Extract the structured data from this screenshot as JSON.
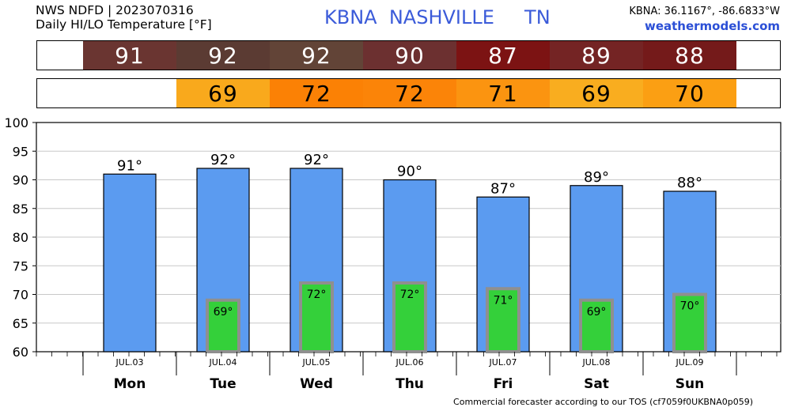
{
  "header": {
    "line1": "NWS NDFD | 2023070316",
    "line2": "Daily HI/LO Temperature [°F]",
    "station_title": "KBNA  NASHVILLE     TN",
    "coords": "KBNA: 36.1167°, -86.6833°W",
    "site": "weathermodels.com"
  },
  "strips": {
    "hi": [
      {
        "value": "91",
        "color": "#6a3531"
      },
      {
        "value": "92",
        "color": "#5b3b33"
      },
      {
        "value": "92",
        "color": "#624437"
      },
      {
        "value": "90",
        "color": "#6c3030"
      },
      {
        "value": "87",
        "color": "#7c1313"
      },
      {
        "value": "89",
        "color": "#742424"
      },
      {
        "value": "88",
        "color": "#741a1a"
      }
    ],
    "lo": [
      {
        "value": "69",
        "color": "#f9a91c"
      },
      {
        "value": "72",
        "color": "#fb8105"
      },
      {
        "value": "72",
        "color": "#fb8408"
      },
      {
        "value": "71",
        "color": "#fb9410"
      },
      {
        "value": "69",
        "color": "#f9ad1f"
      },
      {
        "value": "70",
        "color": "#fb9f13"
      }
    ]
  },
  "chart_data": {
    "type": "bar",
    "categories": [
      "Mon",
      "Tue",
      "Wed",
      "Thu",
      "Fri",
      "Sat",
      "Sun"
    ],
    "dates": [
      "JUL.03",
      "JUL.04",
      "JUL.05",
      "JUL.06",
      "JUL.07",
      "JUL.08",
      "JUL.09"
    ],
    "series": [
      {
        "values": [
          91,
          92,
          92,
          90,
          87,
          89,
          88
        ],
        "labels": [
          "91°",
          "92°",
          "92°",
          "90°",
          "87°",
          "89°",
          "88°"
        ],
        "color": "#5b9bf0"
      },
      {
        "values": [
          null,
          69,
          72,
          72,
          71,
          69,
          70
        ],
        "labels": [
          "",
          "69°",
          "72°",
          "72°",
          "71°",
          "69°",
          "70°"
        ],
        "color": "#34d03a"
      }
    ],
    "ylim": [
      60,
      100
    ],
    "yticks": [
      60,
      65,
      70,
      75,
      80,
      85,
      90,
      95,
      100
    ],
    "title": "",
    "xlabel": "",
    "ylabel": "",
    "grid": "horizontal"
  },
  "footer": "Commercial forecaster according to our TOS (cf7059f0UKBNA0p059)"
}
